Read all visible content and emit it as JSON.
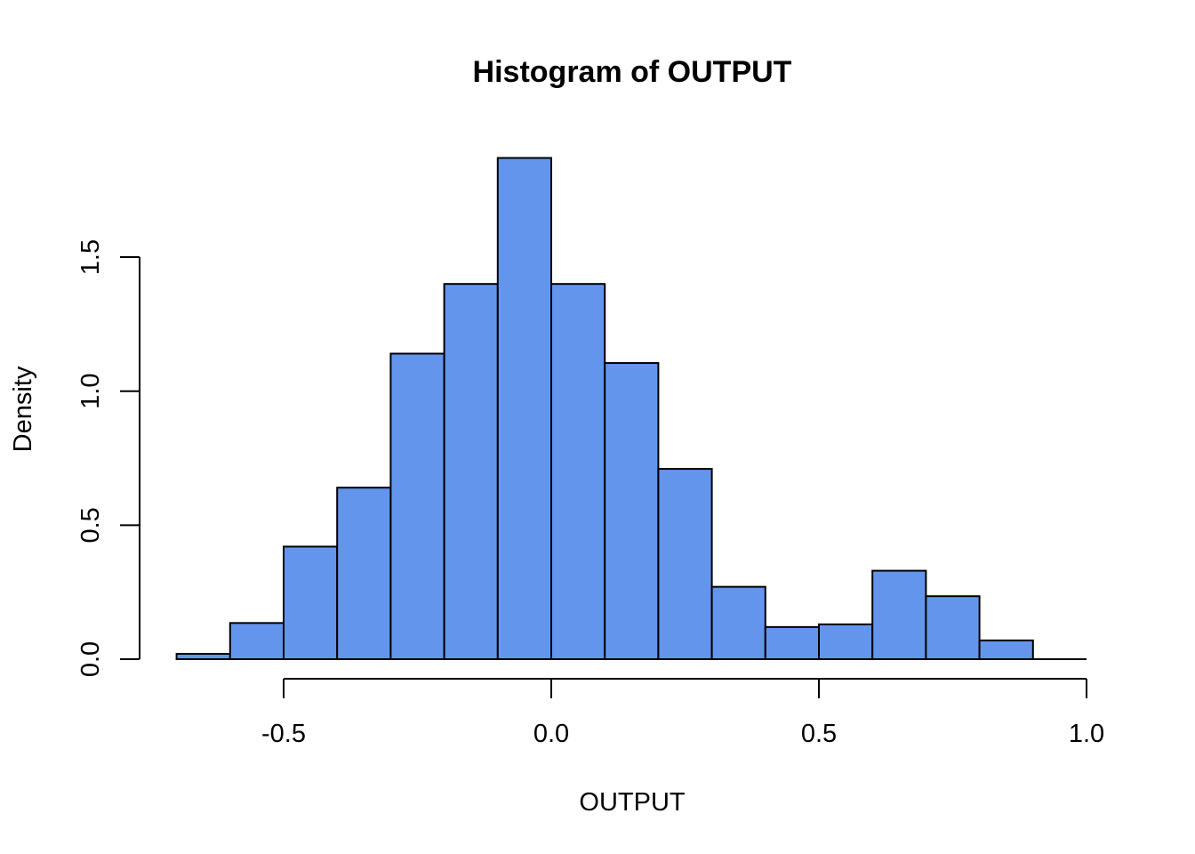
{
  "chart_data": {
    "type": "bar",
    "title": "Histogram of OUTPUT",
    "xlabel": "OUTPUT",
    "ylabel": "Density",
    "bar_color": "#6495ED",
    "bin_edges": [
      -0.7,
      -0.6,
      -0.5,
      -0.4,
      -0.3,
      -0.2,
      -0.1,
      0.0,
      0.1,
      0.2,
      0.3,
      0.4,
      0.5,
      0.6,
      0.7,
      0.8,
      0.9
    ],
    "values": [
      0.02,
      0.135,
      0.42,
      0.64,
      1.14,
      1.4,
      1.87,
      1.4,
      1.105,
      0.71,
      0.27,
      0.12,
      0.13,
      0.33,
      0.235,
      0.07,
      0.0
    ],
    "xlim": [
      -0.72,
      1.0
    ],
    "ylim": [
      0,
      1.9
    ],
    "x_ticks": [
      -0.5,
      0.0,
      0.5,
      1.0
    ],
    "x_tick_labels": [
      "-0.5",
      "0.0",
      "0.5",
      "1.0"
    ],
    "y_ticks": [
      0.0,
      0.5,
      1.0,
      1.5
    ],
    "y_tick_labels": [
      "0.0",
      "0.5",
      "1.0",
      "1.5"
    ]
  }
}
